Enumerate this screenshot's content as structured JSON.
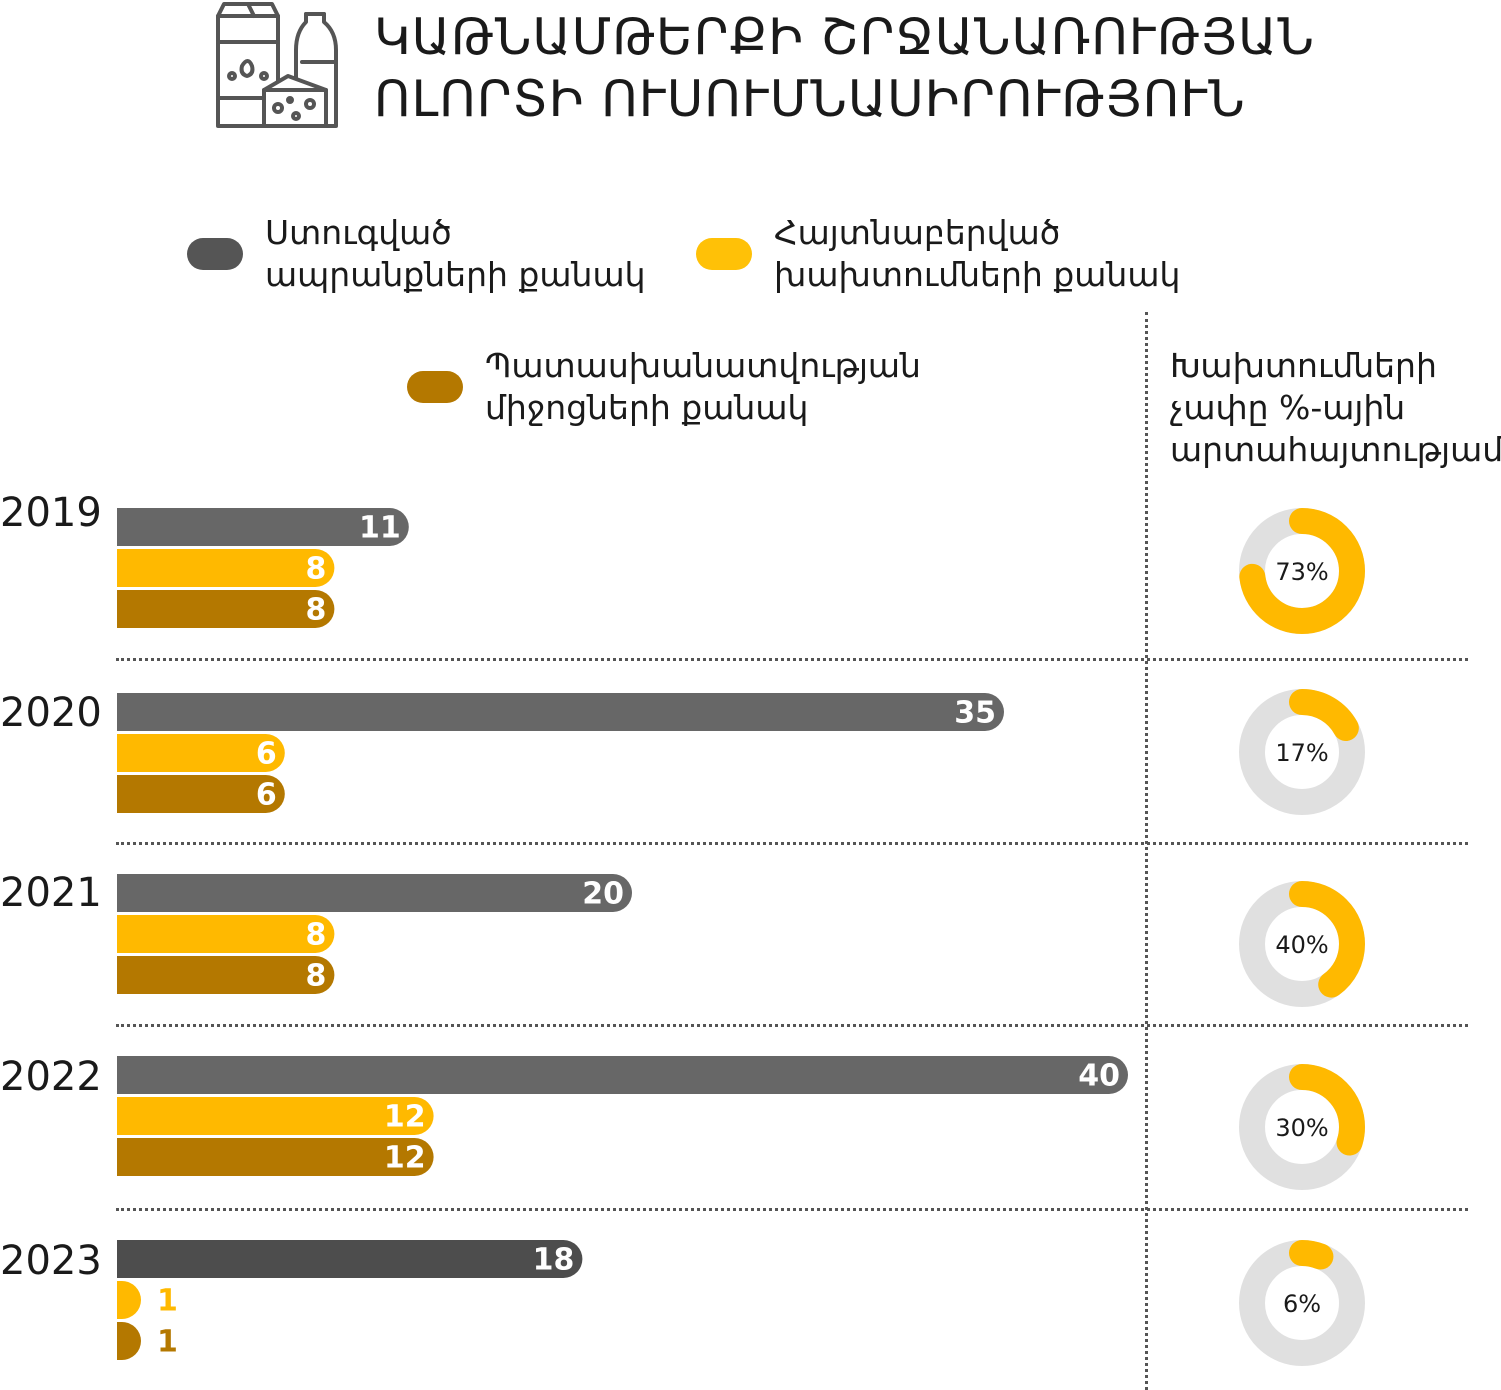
{
  "title": {
    "line1": "ԿԱԹՆԱՄԹԵՐՔԻ ՇՐՋԱՆԱՌՈՒԹՅԱՆ",
    "line2": "ՈԼՈՐՏԻ ՈՒՍՈՒՄՆԱՍԻՐՈՒԹՅՈՒՆ"
  },
  "header_icon": "dairy-products-icon",
  "legend": {
    "received": "Ստուգված\nապրանքների քանակ",
    "violations": "Հայտնաբերված\nխախտումների քանակ",
    "liability": "Պատասխանատվության\nմիջոցների քանակ"
  },
  "pct_header": "Խախտումների\nչափը %-ային\nարտահայտությամբ",
  "colors": {
    "received": "#676767",
    "received_2023": "#4d4d4d",
    "violations": "#FFB900",
    "liability": "#B47800",
    "donut_track": "#E0E0E0",
    "legend_received": "#555555",
    "legend_violations": "#FFC107",
    "legend_liability": "#B47800"
  },
  "chart_data": {
    "type": "bar",
    "orientation": "horizontal",
    "categories": [
      "2019",
      "2020",
      "2021",
      "2022",
      "2023"
    ],
    "series": [
      {
        "name": "Ստուգված ապրանքների քանակ",
        "key": "received",
        "values": [
          11,
          35,
          20,
          40,
          18
        ]
      },
      {
        "name": "Հայտնաբերված խախտումների քանակ",
        "key": "violations",
        "values": [
          8,
          6,
          8,
          12,
          1
        ]
      },
      {
        "name": "Պատասխանատվության միջոցների քանակ",
        "key": "liability",
        "values": [
          8,
          6,
          8,
          12,
          1
        ]
      }
    ],
    "percentages": {
      "title": "Խախտումների չափը %-ային արտահայտությամբ",
      "values": [
        73,
        17,
        40,
        30,
        6
      ],
      "labels": [
        "73%",
        "17%",
        "40%",
        "30%",
        "6%"
      ]
    },
    "xlim": [
      0,
      40
    ],
    "grid": false,
    "legend_position": "top"
  }
}
